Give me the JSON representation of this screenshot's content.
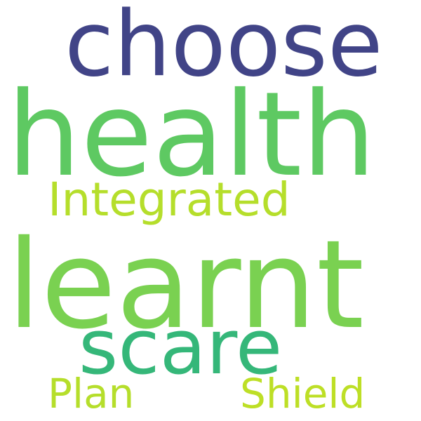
{
  "word_cloud": {
    "background_color": "#ffffff",
    "words": [
      {
        "text": "choose",
        "color": "#414487"
      },
      {
        "text": "health",
        "color": "#5ec962"
      },
      {
        "text": "Integrated",
        "color": "#b5de2b"
      },
      {
        "text": "learnt",
        "color": "#7ad151"
      },
      {
        "text": "scare",
        "color": "#35b779"
      },
      {
        "text": "Plan",
        "color": "#b5de2b"
      },
      {
        "text": "Shield",
        "color": "#bddf26"
      }
    ]
  }
}
